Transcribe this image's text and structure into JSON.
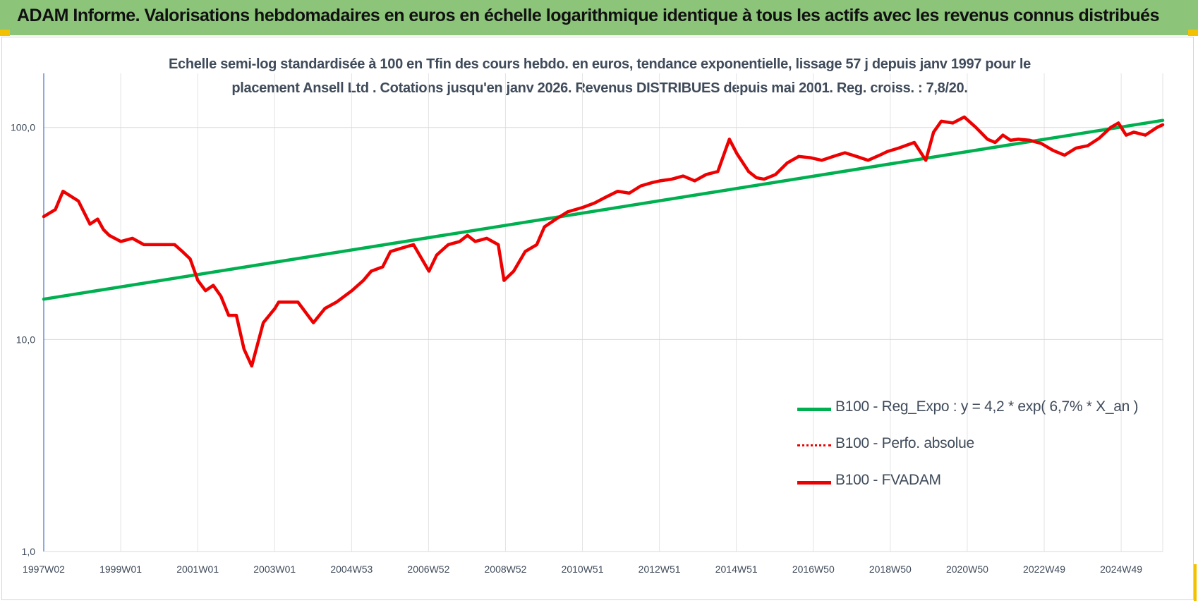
{
  "header": {
    "title": "ADAM Informe. Valorisations hebdomadaires en euros en échelle logarithmique identique à tous les actifs avec les revenus connus distribués"
  },
  "colors": {
    "header_bg": "#8cc47a",
    "corner_marks": "#f2c200",
    "regression": "#00b050",
    "performance": "#ee0000",
    "fvadam": "#ee0000"
  },
  "chart_data": {
    "type": "line",
    "title_lines": [
      "Echelle semi-log standardisée à 100 en Tfin des cours hebdo. en euros, tendance exponentielle, lissage 57 j depuis janv 1997 pour le",
      "placement Ansell Ltd . Cotations jusqu'en janv 2026. Revenus DISTRIBUES depuis mai 2001. Reg. croiss. : 7,8/20."
    ],
    "y_scale": "log",
    "ylim": [
      1,
      180
    ],
    "y_ticks": [
      1,
      10,
      100
    ],
    "y_tick_labels": [
      "1,0",
      "10,0",
      "100,0"
    ],
    "xlim": [
      1997.0,
      2026.05
    ],
    "x_tick_labels": [
      "1997W02",
      "1999W01",
      "2001W01",
      "2003W01",
      "2004W53",
      "2006W52",
      "2008W52",
      "2010W51",
      "2012W51",
      "2014W51",
      "2016W50",
      "2018W50",
      "2020W50",
      "2022W49",
      "2024W49"
    ],
    "grid": true,
    "legend_position": "right",
    "series": [
      {
        "name": "B100 - Reg_Expo : y = 4,2 * exp( 6,7% *  X_an )",
        "style": "solid",
        "x": [
          1997.0,
          2026.05
        ],
        "y": [
          15.5,
          108
        ]
      },
      {
        "name": "B100 - Perfo. absolue",
        "style": "dotted",
        "x": [],
        "y": []
      },
      {
        "name": "B100 - FVADAM",
        "style": "solid",
        "x": [
          1997.0,
          1997.3,
          1997.5,
          1997.9,
          1998.2,
          1998.4,
          1998.55,
          1998.7,
          1999.0,
          1999.3,
          1999.6,
          1999.8,
          2000.0,
          2000.4,
          2000.6,
          2000.8,
          2001.0,
          2001.2,
          2001.4,
          2001.6,
          2001.8,
          2002.0,
          2002.2,
          2002.4,
          2002.7,
          2003.0,
          2003.1,
          2003.3,
          2003.6,
          2004.0,
          2004.3,
          2004.6,
          2005.0,
          2005.3,
          2005.5,
          2005.8,
          2006.0,
          2006.3,
          2006.6,
          2007.0,
          2007.2,
          2007.5,
          2007.8,
          2008.0,
          2008.2,
          2008.5,
          2008.8,
          2008.95,
          2009.2,
          2009.5,
          2009.8,
          2010.0,
          2010.3,
          2010.6,
          2011.0,
          2011.3,
          2011.6,
          2011.9,
          2012.2,
          2012.5,
          2012.8,
          2013.0,
          2013.3,
          2013.6,
          2013.9,
          2014.2,
          2014.5,
          2014.8,
          2015.0,
          2015.3,
          2015.5,
          2015.7,
          2016.0,
          2016.3,
          2016.6,
          2016.9,
          2017.2,
          2017.5,
          2017.8,
          2018.1,
          2018.4,
          2018.7,
          2018.9,
          2019.2,
          2019.6,
          2019.9,
          2020.1,
          2020.3,
          2020.6,
          2020.9,
          2021.2,
          2021.5,
          2021.7,
          2021.9,
          2022.1,
          2022.3,
          2022.6,
          2022.9,
          2023.2,
          2023.5,
          2023.8,
          2024.1,
          2024.4,
          2024.7,
          2024.9,
          2025.1,
          2025.3,
          2025.6,
          2025.9,
          2026.05
        ],
        "y": [
          38,
          41,
          50,
          45,
          35,
          37,
          33,
          31,
          29,
          30,
          28,
          28,
          28,
          28,
          26,
          24,
          19,
          17,
          18,
          16,
          13,
          13,
          9,
          7.5,
          12,
          14,
          15,
          15,
          15,
          12,
          14,
          15,
          17,
          19,
          21,
          22,
          26,
          27,
          28,
          21,
          25,
          28,
          29,
          31,
          29,
          30,
          28,
          19,
          21,
          26,
          28,
          34,
          37,
          40,
          42,
          44,
          47,
          50,
          49,
          53,
          55,
          56,
          57,
          59,
          56,
          60,
          62,
          88,
          75,
          62,
          58,
          57,
          60,
          68,
          73,
          72,
          70,
          73,
          76,
          73,
          70,
          74,
          77,
          80,
          85,
          70,
          95,
          107,
          105,
          112,
          100,
          88,
          85,
          92,
          87,
          88,
          87,
          84,
          78,
          74,
          80,
          82,
          89,
          100,
          105,
          92,
          95,
          92,
          100,
          103
        ]
      }
    ]
  }
}
